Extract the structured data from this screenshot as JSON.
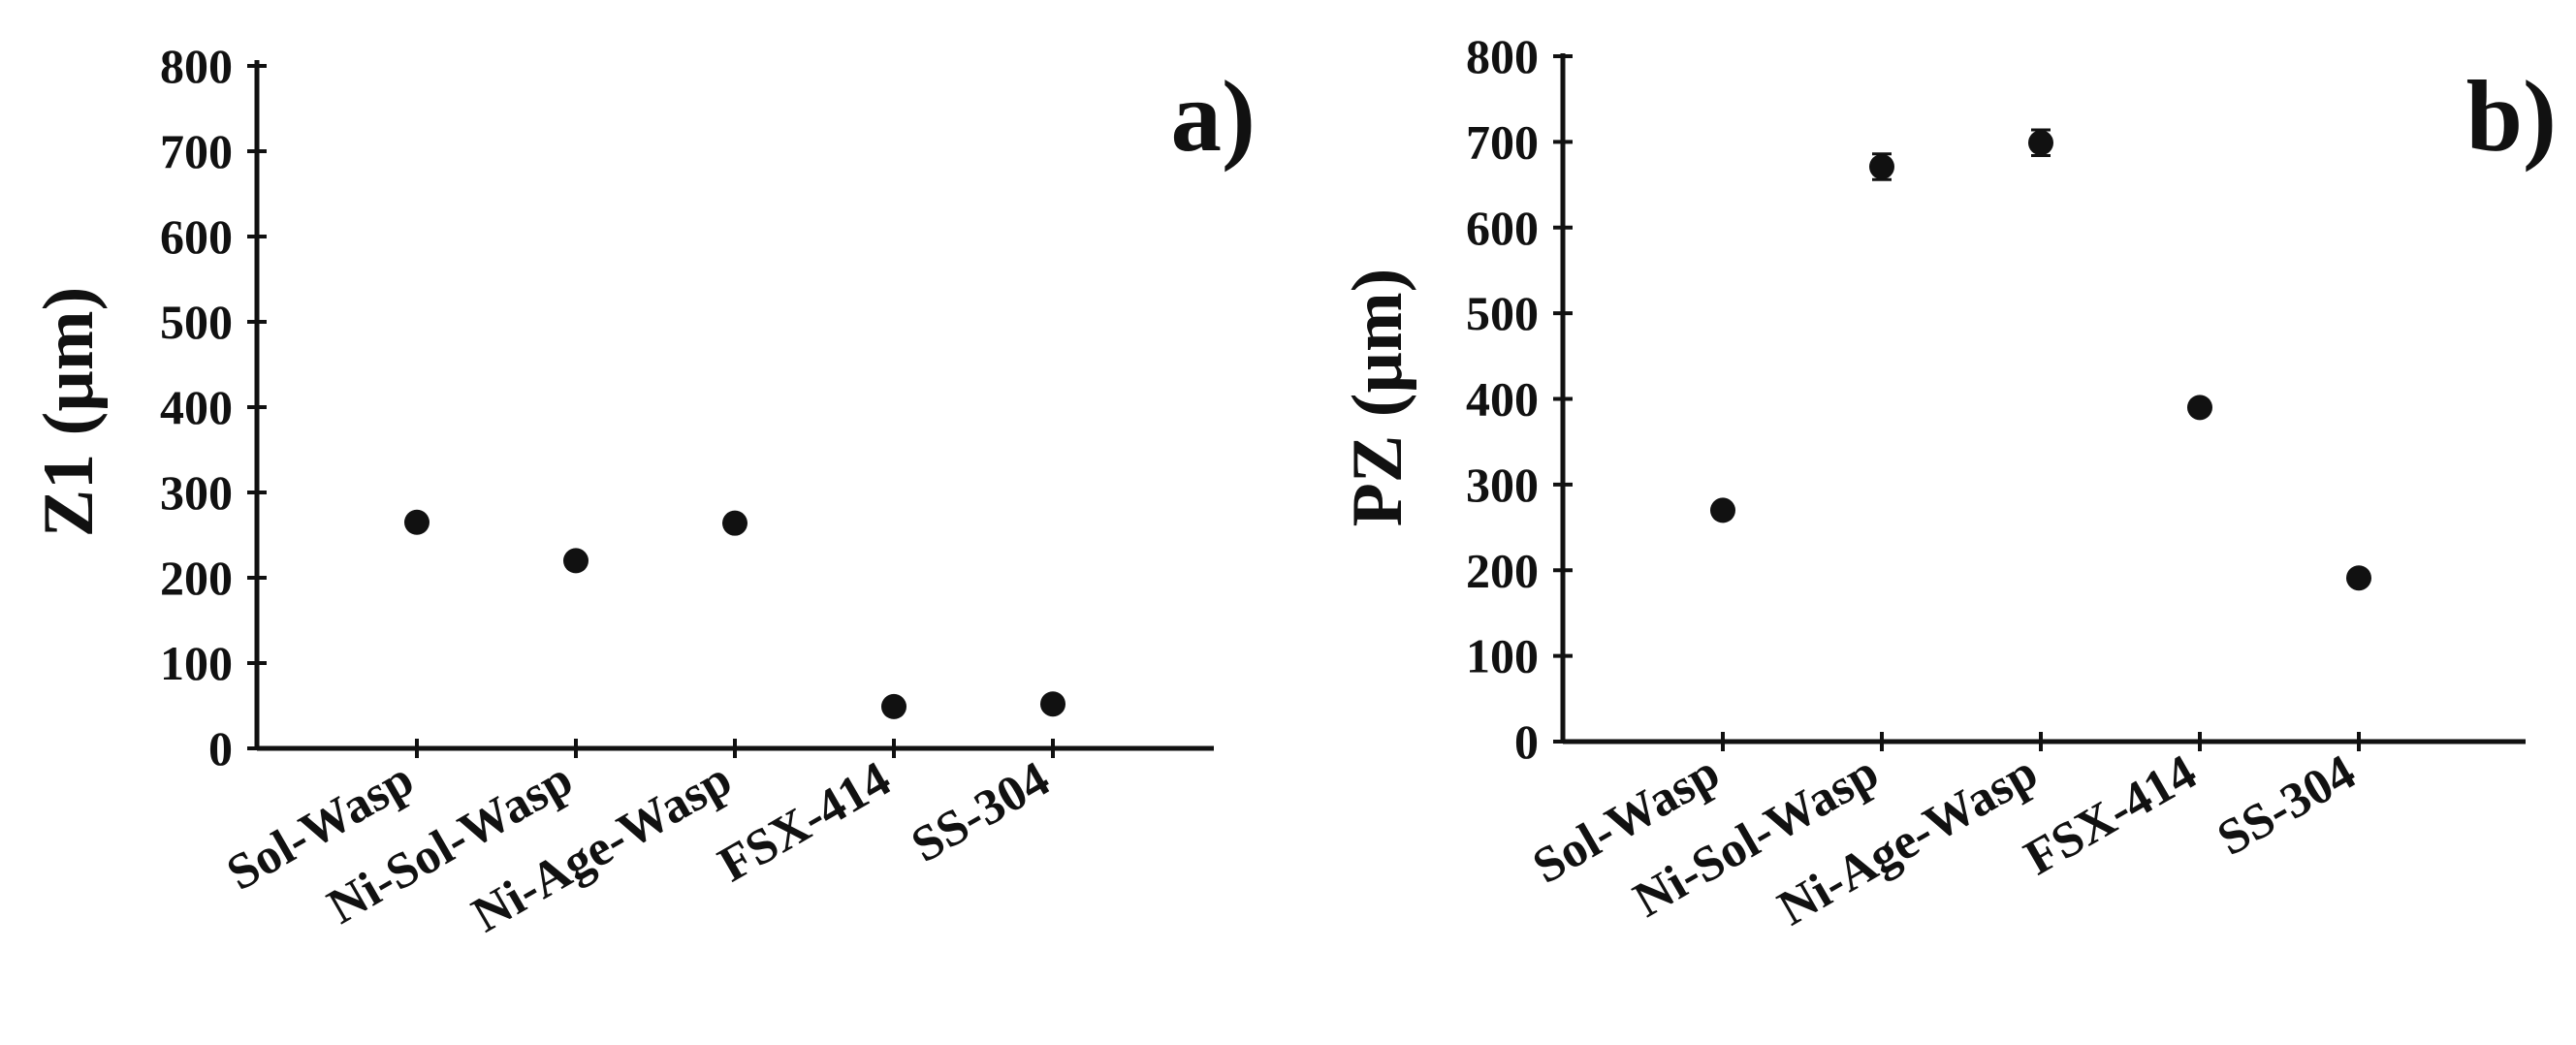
{
  "chart_data": [
    {
      "type": "scatter",
      "panel_label": "a)",
      "title": "",
      "xlabel": "",
      "ylabel": "Z1 (µm)",
      "ylim": [
        0,
        800
      ],
      "yticks": [
        "0",
        "100",
        "200",
        "300",
        "400",
        "500",
        "600",
        "700",
        "800"
      ],
      "categories": [
        "Sol-Wasp",
        "Ni-Sol-Wasp",
        "Ni-Age-Wasp",
        "FSX-414",
        "SS-304"
      ],
      "values": [
        265,
        220,
        264,
        49,
        52
      ],
      "errors": [
        0,
        0,
        0,
        0,
        0
      ],
      "grid": false,
      "legend": "none",
      "marker_color": "#111111"
    },
    {
      "type": "scatter",
      "panel_label": "b)",
      "title": "",
      "xlabel": "",
      "ylabel": "PZ (µm)",
      "ylim": [
        0,
        800
      ],
      "yticks": [
        "0",
        "100",
        "200",
        "300",
        "400",
        "500",
        "600",
        "700",
        "800"
      ],
      "categories": [
        "Sol-Wasp",
        "Ni-Sol-Wasp",
        "Ni-Age-Wasp",
        "FSX-414",
        "SS-304"
      ],
      "values": [
        270,
        671,
        699,
        390,
        191
      ],
      "errors": [
        0,
        15,
        15,
        0,
        0
      ],
      "grid": false,
      "legend": "none",
      "marker_color": "#111111"
    }
  ]
}
